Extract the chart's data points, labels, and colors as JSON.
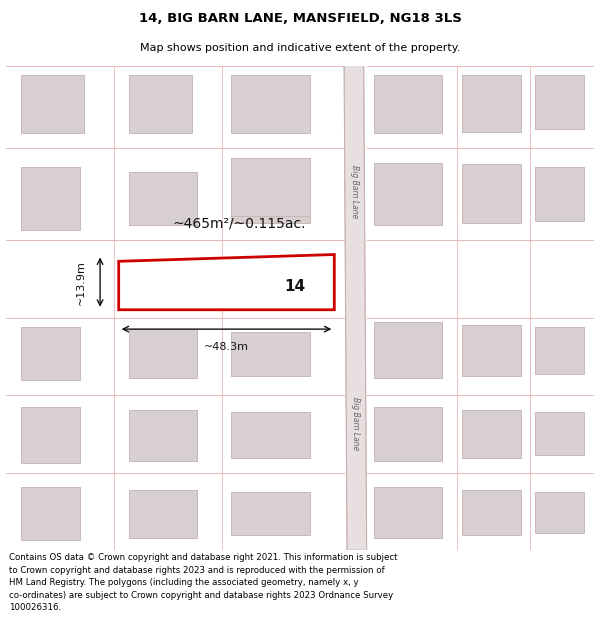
{
  "title": "14, BIG BARN LANE, MANSFIELD, NG18 3LS",
  "subtitle": "Map shows position and indicative extent of the property.",
  "footer": "Contains OS data © Crown copyright and database right 2021. This information is subject\nto Crown copyright and database rights 2023 and is reproduced with the permission of\nHM Land Registry. The polygons (including the associated geometry, namely x, y\nco-ordinates) are subject to Crown copyright and database rights 2023 Ordnance Survey\n100026316.",
  "bg_color": "#ffffff",
  "map_bg": "#ffffff",
  "road_line_color": "#e8b8b8",
  "road_fill": "#e0d8d8",
  "building_fill": "#d8d0d0",
  "building_edge": "#c8b8b8",
  "highlight_color": "#cc0000",
  "highlight_fill": "#ffffff",
  "dim_color": "#111111",
  "title_fontsize": 9.5,
  "subtitle_fontsize": 8,
  "footer_fontsize": 6.2,
  "label_14_fontsize": 11,
  "area_label_fontsize": 10,
  "dim_label_fontsize": 8
}
